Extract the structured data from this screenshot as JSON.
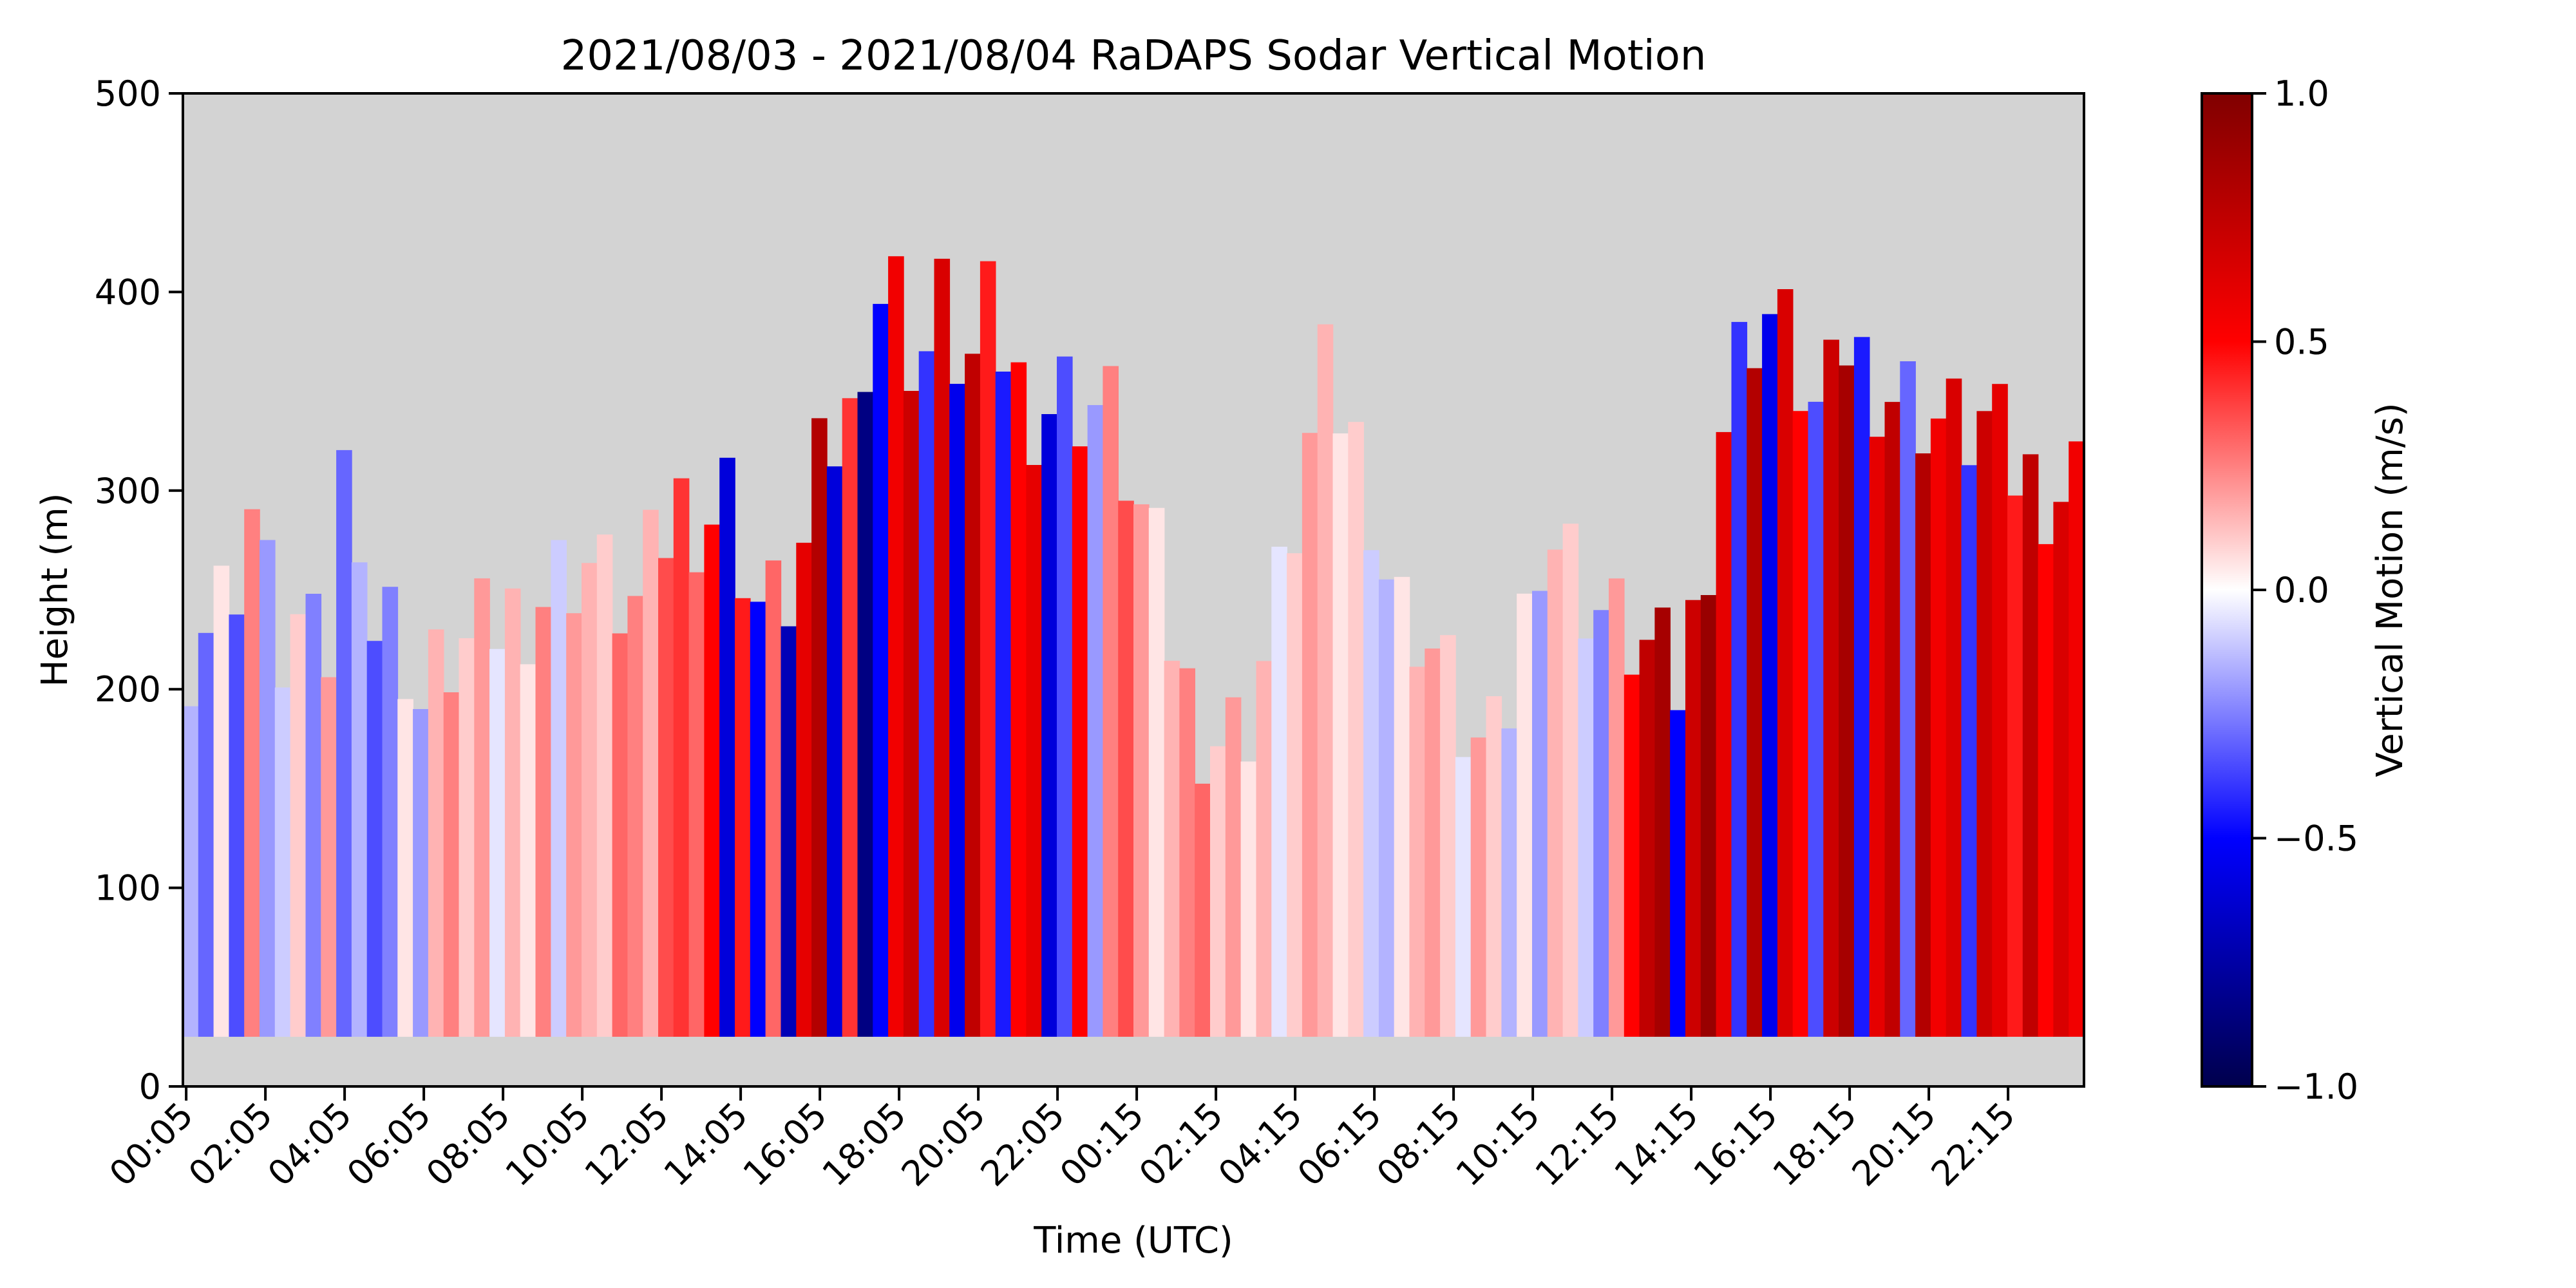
{
  "chart_data": {
    "type": "heatmap",
    "title": "2021/08/03 - 2021/08/04 RaDAPS Sodar Vertical Motion",
    "xlabel": "Time (UTC)",
    "ylabel": "Height (m)",
    "x_tick_labels": [
      "00:05",
      "02:05",
      "04:05",
      "06:05",
      "08:05",
      "10:05",
      "12:05",
      "14:05",
      "16:05",
      "18:05",
      "20:05",
      "22:05",
      "00:15",
      "02:15",
      "04:15",
      "06:15",
      "08:15",
      "10:15",
      "12:15",
      "14:15",
      "16:15",
      "18:15",
      "20:15",
      "22:15"
    ],
    "y_ticks": [
      0,
      100,
      200,
      300,
      400,
      500
    ],
    "ylim": [
      0,
      500
    ],
    "x_span_hours": 48,
    "first_tick_hours": 0.083,
    "tick_interval_hours": 2,
    "colorbar": {
      "label": "Vertical Motion (m/s)",
      "range": [
        -1.0,
        1.0
      ],
      "ticks": [
        1.0,
        0.5,
        0.0,
        -0.5,
        -1.0
      ],
      "tick_labels": [
        "1.0",
        "0.5",
        "0.0",
        "−0.5",
        "−1.0"
      ],
      "colormap": "seismic"
    },
    "missing_color": "#d3d3d3",
    "data_bottom_m": 25,
    "column_tops_m": [
      [
        0,
        215
      ],
      [
        1,
        235
      ],
      [
        2,
        250
      ],
      [
        3,
        295
      ],
      [
        4,
        215
      ],
      [
        5,
        235
      ],
      [
        6,
        200
      ],
      [
        7,
        340
      ],
      [
        8,
        230
      ],
      [
        9,
        235
      ],
      [
        10,
        190
      ],
      [
        11,
        215
      ],
      [
        12,
        220
      ],
      [
        13,
        230
      ],
      [
        14,
        240
      ],
      [
        15,
        245
      ],
      [
        16,
        260
      ],
      [
        17,
        265
      ],
      [
        18,
        250
      ],
      [
        19,
        240
      ],
      [
        20,
        270
      ],
      [
        21,
        295
      ],
      [
        22,
        285
      ],
      [
        23,
        300
      ],
      [
        24,
        245
      ],
      [
        25,
        240
      ],
      [
        26,
        260
      ],
      [
        27,
        320
      ],
      [
        28,
        330
      ],
      [
        29,
        400
      ],
      [
        30,
        400
      ],
      [
        31,
        360
      ],
      [
        32,
        395
      ],
      [
        33,
        355
      ],
      [
        34,
        390
      ],
      [
        35,
        355
      ],
      [
        36,
        340
      ],
      [
        37,
        350
      ],
      [
        38,
        345
      ],
      [
        39,
        340
      ],
      [
        40,
        300
      ],
      [
        41,
        260
      ],
      [
        42,
        205
      ],
      [
        43,
        180
      ],
      [
        44,
        175
      ],
      [
        45,
        190
      ],
      [
        46,
        240
      ],
      [
        47,
        300
      ],
      [
        48,
        355
      ],
      [
        49,
        335
      ],
      [
        50,
        300
      ],
      [
        51,
        240
      ],
      [
        52,
        235
      ],
      [
        53,
        210
      ],
      [
        54,
        180
      ],
      [
        55,
        160
      ],
      [
        56,
        200
      ],
      [
        57,
        280
      ],
      [
        58,
        275
      ],
      [
        59,
        250
      ],
      [
        60,
        235
      ],
      [
        61,
        225
      ],
      [
        62,
        215
      ],
      [
        63,
        200
      ],
      [
        64,
        260
      ],
      [
        65,
        350
      ],
      [
        66,
        385
      ],
      [
        67,
        390
      ],
      [
        68,
        360
      ],
      [
        69,
        330
      ],
      [
        70,
        375
      ],
      [
        71,
        360
      ],
      [
        72,
        350
      ],
      [
        73,
        345
      ],
      [
        74,
        335
      ],
      [
        75,
        330
      ],
      [
        76,
        335
      ],
      [
        77,
        310
      ],
      [
        78,
        305
      ],
      [
        79,
        300
      ],
      [
        80,
        310
      ]
    ],
    "stripe_values": [
      -0.15,
      -0.3,
      0.05,
      -0.35,
      0.25,
      -0.2,
      -0.1,
      0.1,
      -0.25,
      0.2,
      -0.3,
      -0.15,
      -0.35,
      -0.25,
      0.05,
      -0.2,
      0.15,
      0.25,
      0.1,
      0.2,
      -0.05,
      0.15,
      0.05,
      0.25,
      -0.1,
      0.2,
      0.15,
      0.1,
      0.3,
      0.25,
      0.15,
      0.35,
      0.4,
      0.3,
      0.5,
      -0.6,
      0.45,
      -0.5,
      0.3,
      -0.7,
      0.6,
      0.8,
      -0.6,
      0.4,
      -0.85,
      -0.5,
      0.55,
      0.7,
      -0.4,
      0.65,
      -0.55,
      0.75,
      0.45,
      -0.45,
      0.5,
      0.6,
      -0.6,
      -0.35,
      0.5,
      -0.2,
      0.25,
      0.35,
      0.2,
      0.05,
      0.15,
      0.25,
      0.3,
      0.1,
      0.2,
      0.05,
      0.15,
      -0.05,
      0.1,
      0.2,
      0.15,
      0.05,
      0.1,
      -0.1,
      -0.15,
      0.05,
      0.15,
      0.2,
      0.1,
      -0.05,
      0.2,
      0.1,
      -0.15,
      0.05,
      -0.2,
      0.15,
      0.1,
      -0.1,
      -0.25,
      0.2,
      0.5,
      0.75,
      0.85,
      -0.5,
      0.7,
      0.9,
      0.6,
      -0.4,
      0.8,
      -0.55,
      0.65,
      0.5,
      -0.35,
      0.7,
      0.85,
      -0.45,
      0.6,
      0.75,
      -0.3,
      0.8,
      0.55,
      0.65,
      -0.4,
      0.7,
      0.6,
      0.45,
      0.75,
      0.5,
      0.65,
      0.55
    ]
  }
}
